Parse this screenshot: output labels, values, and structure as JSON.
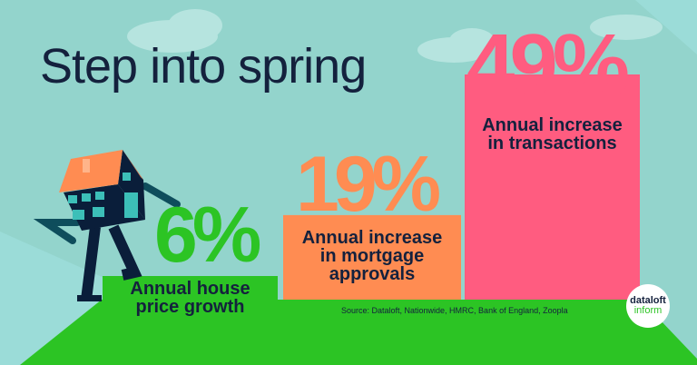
{
  "title": "Step into spring",
  "chart_data": {
    "type": "bar",
    "categories": [
      "Annual house price growth",
      "Annual increase in mortgage approvals",
      "Annual increase in transactions"
    ],
    "values": [
      6,
      19,
      49
    ],
    "value_labels": [
      "6%",
      "19%",
      "49%"
    ],
    "colors": [
      "#2cc424",
      "#ff8c52",
      "#ff5c80"
    ],
    "ylim": [
      0,
      49
    ]
  },
  "labels": {
    "bar1_line1": "Annual house",
    "bar1_line2": "price growth",
    "bar2_line1": "Annual increase",
    "bar2_line2": "in mortgage",
    "bar2_line3": "approvals",
    "bar3_line1": "Annual increase",
    "bar3_line2": "in transactions"
  },
  "source": "Source: Dataloft, Nationwide, HMRC, Bank of England, Zoopla",
  "logo": {
    "line1": "dataloft",
    "line2": "inform"
  }
}
